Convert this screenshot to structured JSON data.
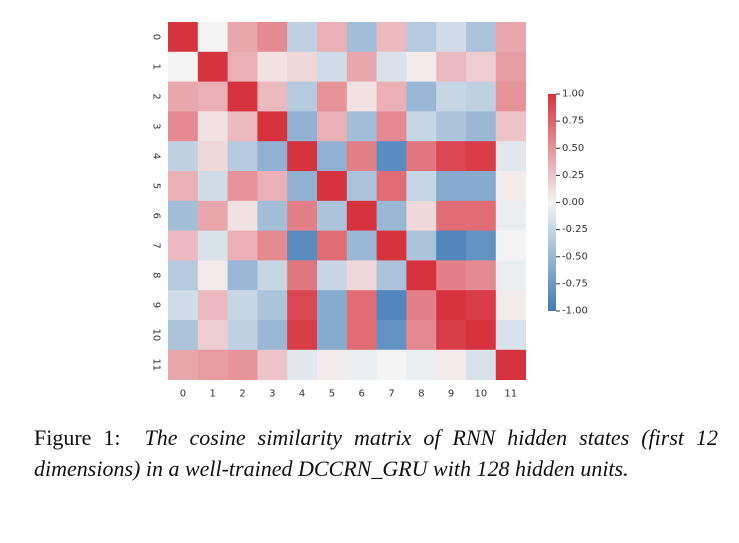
{
  "chart_data": {
    "type": "heatmap",
    "title": "",
    "xlabel": "",
    "ylabel": "",
    "x_categories": [
      "0",
      "1",
      "2",
      "3",
      "4",
      "5",
      "6",
      "7",
      "8",
      "9",
      "10",
      "11"
    ],
    "y_categories": [
      "0",
      "1",
      "2",
      "3",
      "4",
      "5",
      "6",
      "7",
      "8",
      "9",
      "10",
      "11"
    ],
    "vmin": -1.0,
    "vmax": 1.0,
    "colorbar_ticks": [
      "1.00",
      "0.75",
      "0.50",
      "0.25",
      "0.00",
      "-0.25",
      "-0.50",
      "-0.75",
      "-1.00"
    ],
    "colormap": {
      "negative": "#3f7bb6",
      "center": "#f4f4f4",
      "positive": "#d7333f"
    },
    "values": [
      [
        1.0,
        0.0,
        0.4,
        0.55,
        -0.3,
        0.35,
        -0.45,
        0.3,
        -0.35,
        -0.2,
        -0.4,
        0.4
      ],
      [
        0.0,
        1.0,
        0.35,
        0.1,
        0.15,
        -0.2,
        0.4,
        -0.15,
        0.05,
        0.3,
        0.2,
        0.45
      ],
      [
        0.4,
        0.35,
        1.0,
        0.3,
        -0.35,
        0.5,
        0.1,
        0.35,
        -0.5,
        -0.25,
        -0.3,
        0.5
      ],
      [
        0.55,
        0.1,
        0.3,
        1.0,
        -0.55,
        0.35,
        -0.45,
        0.55,
        -0.25,
        -0.4,
        -0.5,
        0.25
      ],
      [
        -0.3,
        0.15,
        -0.35,
        -0.55,
        1.0,
        -0.55,
        0.6,
        -0.85,
        0.65,
        0.9,
        0.95,
        -0.1
      ],
      [
        0.35,
        -0.2,
        0.5,
        0.35,
        -0.55,
        1.0,
        -0.4,
        0.7,
        -0.25,
        -0.6,
        -0.6,
        0.05
      ],
      [
        -0.45,
        0.4,
        0.1,
        -0.45,
        0.6,
        -0.4,
        1.0,
        -0.5,
        0.15,
        0.7,
        0.7,
        -0.05
      ],
      [
        0.3,
        -0.15,
        0.35,
        0.55,
        -0.85,
        0.7,
        -0.5,
        1.0,
        -0.4,
        -0.9,
        -0.8,
        0.0
      ],
      [
        -0.35,
        0.05,
        -0.5,
        -0.25,
        0.65,
        -0.25,
        0.15,
        -0.4,
        1.0,
        0.6,
        0.55,
        -0.05
      ],
      [
        -0.2,
        0.3,
        -0.25,
        -0.4,
        0.9,
        -0.6,
        0.7,
        -0.9,
        0.6,
        1.0,
        0.95,
        0.05
      ],
      [
        -0.4,
        0.2,
        -0.3,
        -0.5,
        0.95,
        -0.6,
        0.7,
        -0.8,
        0.55,
        0.95,
        1.0,
        -0.15
      ],
      [
        0.4,
        0.45,
        0.5,
        0.25,
        -0.1,
        0.05,
        -0.05,
        0.0,
        -0.05,
        0.05,
        -0.15,
        1.0
      ]
    ]
  },
  "caption": {
    "label": "Figure 1:",
    "text": "The cosine similarity matrix of RNN hidden states (first 12 dimensions) in a well-trained DCCRN_GRU with 128 hidden units."
  }
}
